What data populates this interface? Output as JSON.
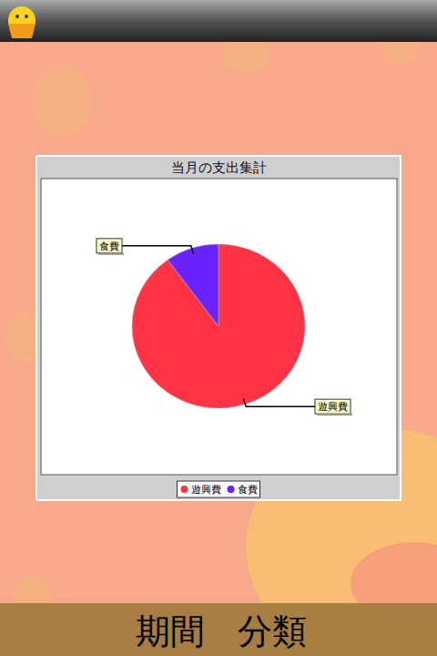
{
  "chart_data": {
    "type": "pie",
    "title": "当月の支出集計",
    "categories": [
      "遊興費",
      "食費"
    ],
    "values": [
      90,
      10
    ],
    "colors": [
      "#ff3344",
      "#6a22ff"
    ],
    "legend": "bottom"
  },
  "footer": {
    "buttons": [
      "期間",
      "分類"
    ]
  }
}
